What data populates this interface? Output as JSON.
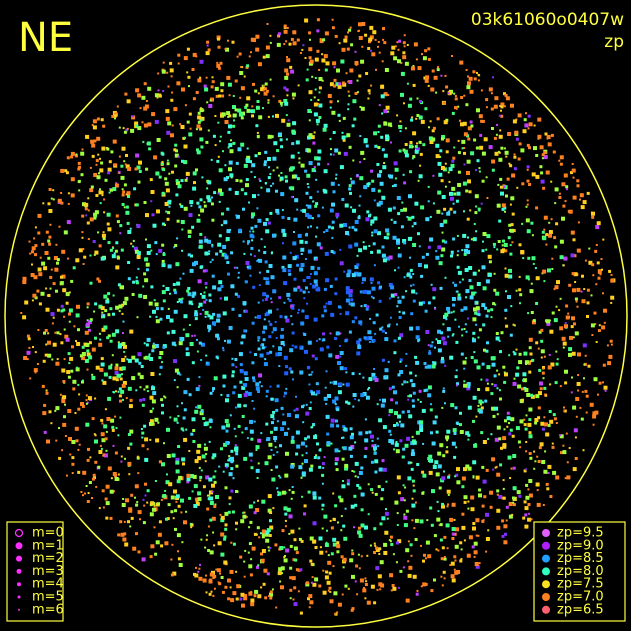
{
  "header": {
    "direction": "NE",
    "frame_id": "03k61060o0407w",
    "subtitle": "zp"
  },
  "magnitude_legend": {
    "color": "#ff30ff",
    "items": [
      "m=0",
      "m=1",
      "m=2",
      "m=3",
      "m=4",
      "m=5",
      "m=6"
    ]
  },
  "zp_legend": {
    "items": [
      {
        "label": "zp=9.5",
        "color": "#e060ff"
      },
      {
        "label": "zp=9.0",
        "color": "#b020ff"
      },
      {
        "label": "zp=8.5",
        "color": "#20a0ff"
      },
      {
        "label": "zp=8.0",
        "color": "#30ffc0"
      },
      {
        "label": "zp=7.5",
        "color": "#ffe020"
      },
      {
        "label": "zp=7.0",
        "color": "#ff8020"
      },
      {
        "label": "zp=6.5",
        "color": "#ff6070"
      }
    ]
  }
}
